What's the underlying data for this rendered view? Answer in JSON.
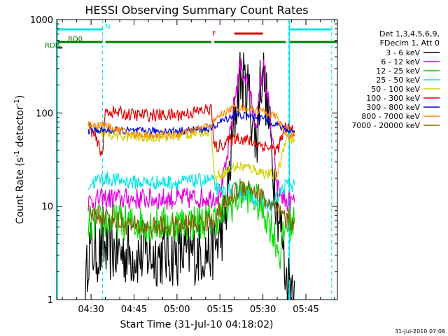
{
  "chart_data": {
    "type": "line",
    "title": "HESSI Observing Summary Count Rates",
    "xlabel": "Start Time (31-Jul-10 04:18:02)",
    "ylabel": "Count Rate (s",
    "ylabel_sup": "-1",
    "ylabel_tail": " detector",
    "ylabel_end": ")",
    "ylim": [
      1,
      1000
    ],
    "yscale": "log",
    "xlim": [
      "04:18",
      "05:56"
    ],
    "x_ticks": [
      "04:30",
      "04:45",
      "05:00",
      "05:15",
      "05:30",
      "05:45"
    ],
    "y_ticks": [
      "1",
      "10",
      "100",
      "1000"
    ],
    "grid": false,
    "legend_position": "right",
    "legend_header": [
      "Det 1,3,4,5,6,9,",
      "FDecim 1, Att 0"
    ],
    "timestamp": "31-Jul-2010 07:08",
    "flags": [
      {
        "label": "N",
        "color": "#00e5e5",
        "segments": [
          [
            "04:18",
            "04:34"
          ],
          [
            "05:39",
            "05:54"
          ]
        ]
      },
      {
        "label": "RD0",
        "color": "#007a00",
        "segments": [
          [
            "04:18",
            "04:34"
          ],
          [
            "04:35",
            "05:12"
          ],
          [
            "05:13",
            "05:38"
          ],
          [
            "05:39",
            "05:56"
          ]
        ]
      },
      {
        "label": "RDB",
        "color": "#007a00",
        "segments": [
          [
            "04:18",
            "04:20"
          ]
        ]
      },
      {
        "label": "F",
        "color": "#e00000",
        "segments": [
          [
            "05:20",
            "05:30"
          ]
        ]
      }
    ],
    "series": [
      {
        "name": "3 - 6 keV",
        "color": "#000000",
        "noise": 0.35,
        "points": [
          [
            "04:28",
            1
          ],
          [
            "04:29",
            3.5
          ],
          [
            "04:33",
            3.2
          ],
          [
            "04:34",
            3.5
          ],
          [
            "04:45",
            3
          ],
          [
            "05:00",
            3
          ],
          [
            "05:12",
            3.3
          ],
          [
            "05:15",
            4.5
          ],
          [
            "05:17",
            8
          ],
          [
            "05:20",
            80
          ],
          [
            "05:22",
            240
          ],
          [
            "05:25",
            170
          ],
          [
            "05:27",
            60
          ],
          [
            "05:28",
            50
          ],
          [
            "05:29",
            200
          ],
          [
            "05:30",
            300
          ],
          [
            "05:32",
            80
          ],
          [
            "05:35",
            10
          ],
          [
            "05:37",
            4
          ],
          [
            "05:38",
            1.6
          ],
          [
            "05:41",
            1.6
          ]
        ]
      },
      {
        "name": "6 - 12 keV",
        "color": "#e000e0",
        "noise": 0.12,
        "points": [
          [
            "04:29",
            11
          ],
          [
            "04:34",
            12
          ],
          [
            "04:45",
            12
          ],
          [
            "05:00",
            12
          ],
          [
            "05:12",
            12.5
          ],
          [
            "05:15",
            14
          ],
          [
            "05:17",
            25
          ],
          [
            "05:20",
            130
          ],
          [
            "05:22",
            320
          ],
          [
            "05:25",
            200
          ],
          [
            "05:27",
            80
          ],
          [
            "05:28",
            90
          ],
          [
            "05:30",
            340
          ],
          [
            "05:32",
            120
          ],
          [
            "05:35",
            16
          ],
          [
            "05:38",
            11
          ],
          [
            "05:41",
            11
          ]
        ]
      },
      {
        "name": "12 - 25 keV",
        "color": "#00dd00",
        "noise": 0.2,
        "points": [
          [
            "04:29",
            6
          ],
          [
            "04:34",
            7
          ],
          [
            "04:45",
            6.5
          ],
          [
            "05:00",
            6.5
          ],
          [
            "05:12",
            7
          ],
          [
            "05:15",
            8
          ],
          [
            "05:20",
            11
          ],
          [
            "05:23",
            14
          ],
          [
            "05:27",
            12
          ],
          [
            "05:30",
            9
          ],
          [
            "05:33",
            6
          ],
          [
            "05:36",
            3
          ],
          [
            "05:38",
            6.5
          ],
          [
            "05:41",
            6.5
          ]
        ]
      },
      {
        "name": "25 - 50 keV",
        "color": "#00e5e5",
        "noise": 0.08,
        "points": [
          [
            "04:29",
            17
          ],
          [
            "04:34",
            20
          ],
          [
            "04:45",
            18
          ],
          [
            "05:00",
            18
          ],
          [
            "05:12",
            19
          ],
          [
            "05:15",
            14
          ],
          [
            "05:20",
            15
          ],
          [
            "05:23",
            14
          ],
          [
            "05:28",
            12
          ],
          [
            "05:33",
            10
          ],
          [
            "05:38",
            17
          ],
          [
            "05:41",
            17
          ]
        ]
      },
      {
        "name": "50 - 100 keV",
        "color": "#d0d000",
        "noise": 0.06,
        "points": [
          [
            "04:29",
            72
          ],
          [
            "04:34",
            60
          ],
          [
            "04:45",
            55
          ],
          [
            "05:00",
            56
          ],
          [
            "05:12",
            66
          ],
          [
            "05:13",
            20
          ],
          [
            "05:15",
            22
          ],
          [
            "05:21",
            27
          ],
          [
            "05:25",
            26
          ],
          [
            "05:30",
            23
          ],
          [
            "05:35",
            21
          ],
          [
            "05:38",
            55
          ],
          [
            "05:41",
            52
          ]
        ]
      },
      {
        "name": "100 - 300 keV",
        "color": "#e00000",
        "noise": 0.07,
        "points": [
          [
            "04:29",
            78
          ],
          [
            "04:34",
            36
          ],
          [
            "04:35",
            105
          ],
          [
            "04:45",
            95
          ],
          [
            "05:00",
            95
          ],
          [
            "05:12",
            110
          ],
          [
            "05:13",
            42
          ],
          [
            "05:15",
            45
          ],
          [
            "05:21",
            55
          ],
          [
            "05:25",
            50
          ],
          [
            "05:30",
            45
          ],
          [
            "05:35",
            40
          ],
          [
            "05:38",
            70
          ],
          [
            "05:41",
            65
          ]
        ]
      },
      {
        "name": "300 - 800 keV",
        "color": "#0000e0",
        "noise": 0.04,
        "points": [
          [
            "04:29",
            65
          ],
          [
            "04:34",
            65
          ],
          [
            "04:45",
            64
          ],
          [
            "05:00",
            64
          ],
          [
            "05:12",
            68
          ],
          [
            "05:15",
            80
          ],
          [
            "05:20",
            95
          ],
          [
            "05:25",
            93
          ],
          [
            "05:30",
            88
          ],
          [
            "05:35",
            75
          ],
          [
            "05:38",
            65
          ],
          [
            "05:41",
            64
          ]
        ]
      },
      {
        "name": "800 - 7000 keV",
        "color": "#ff8800",
        "noise": 0.04,
        "points": [
          [
            "04:29",
            75
          ],
          [
            "04:34",
            75
          ],
          [
            "04:45",
            58
          ],
          [
            "05:00",
            58
          ],
          [
            "05:12",
            75
          ],
          [
            "05:15",
            95
          ],
          [
            "05:20",
            115
          ],
          [
            "05:25",
            112
          ],
          [
            "05:30",
            105
          ],
          [
            "05:35",
            90
          ],
          [
            "05:38",
            58
          ],
          [
            "05:41",
            56
          ]
        ]
      },
      {
        "name": "7000 - 20000 keV",
        "color": "#806000",
        "noise": 0.12,
        "points": [
          [
            "04:29",
            8
          ],
          [
            "04:34",
            8
          ],
          [
            "04:45",
            6
          ],
          [
            "05:00",
            6
          ],
          [
            "05:12",
            7
          ],
          [
            "05:15",
            9
          ],
          [
            "05:20",
            14
          ],
          [
            "05:24",
            17
          ],
          [
            "05:28",
            14
          ],
          [
            "05:33",
            10
          ],
          [
            "05:38",
            7
          ],
          [
            "05:41",
            7
          ]
        ]
      }
    ]
  }
}
